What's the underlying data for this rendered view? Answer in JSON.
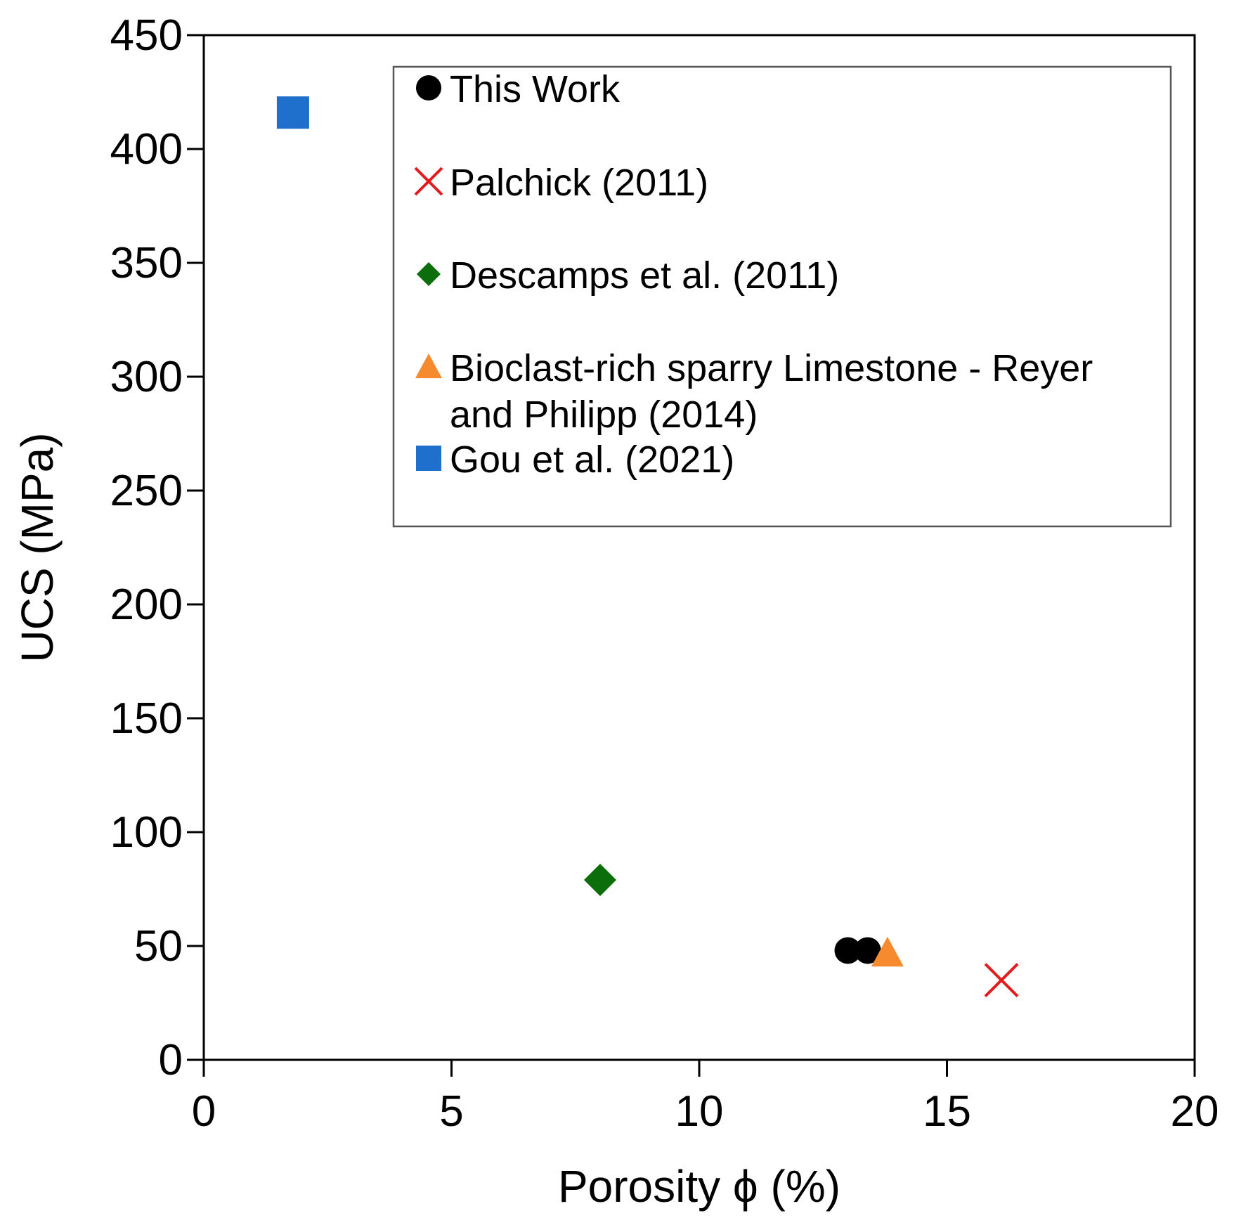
{
  "chart_data": {
    "type": "scatter",
    "title": "",
    "xlabel": "Porosity ϕ (%)",
    "ylabel": "UCS (MPa)",
    "xlim": [
      0,
      20
    ],
    "ylim": [
      0,
      450
    ],
    "xticks": [
      0,
      5,
      10,
      15,
      20
    ],
    "yticks": [
      0,
      50,
      100,
      150,
      200,
      250,
      300,
      350,
      400,
      450
    ],
    "grid": false,
    "legend_position": "top-right",
    "series": [
      {
        "name": "This Work",
        "marker": "circle",
        "color": "#000000",
        "points": [
          {
            "x": 13.0,
            "y": 48
          },
          {
            "x": 13.4,
            "y": 48
          }
        ]
      },
      {
        "name": "Palchick (2011)",
        "marker": "x",
        "color": "#e41a1c",
        "points": [
          {
            "x": 16.1,
            "y": 35
          }
        ]
      },
      {
        "name": "Descamps et al. (2011)",
        "marker": "diamond",
        "color": "#0b6e0b",
        "points": [
          {
            "x": 8.0,
            "y": 79
          }
        ]
      },
      {
        "name": "Bioclast-rich sparry Limestone - Reyer and Philipp (2014)",
        "legend_lines": [
          "Bioclast-rich sparry Limestone - Reyer",
          "and Philipp (2014)"
        ],
        "marker": "triangle",
        "color": "#f68a2e",
        "points": [
          {
            "x": 13.8,
            "y": 47
          }
        ]
      },
      {
        "name": "Gou et al. (2021)",
        "marker": "square",
        "color": "#1f6fcd",
        "points": [
          {
            "x": 1.8,
            "y": 416
          }
        ]
      }
    ]
  }
}
